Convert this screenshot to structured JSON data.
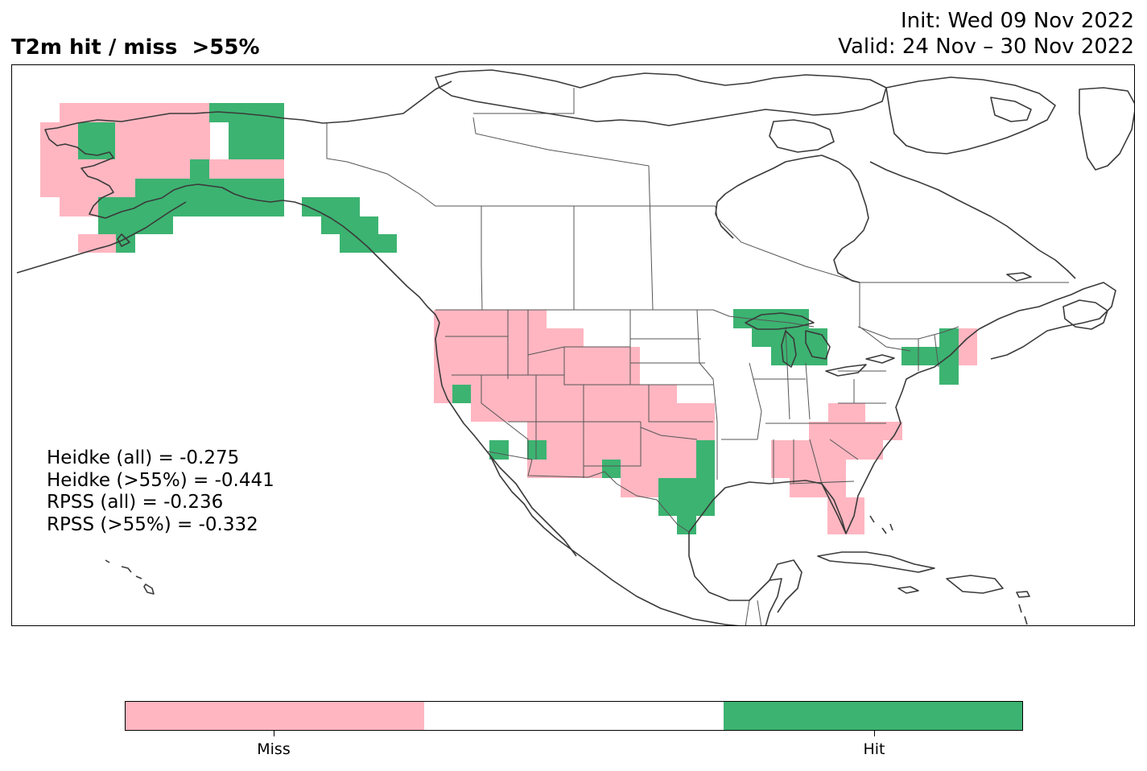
{
  "header": {
    "title": "T2m hit / miss  >55%",
    "init": "Init: Wed 09 Nov 2022",
    "valid": "Valid: 24 Nov – 30 Nov 2022"
  },
  "scores": [
    "Heidke (all) = -0.275",
    "Heidke (>55%) = -0.441",
    "RPSS (all) = -0.236",
    "RPSS (>55%) = -0.332"
  ],
  "legend": {
    "labels": [
      "Miss",
      "",
      "Hit"
    ],
    "colors": [
      "#ffb6c1",
      "#ffffff",
      "#3cb371"
    ]
  },
  "colors": {
    "miss": "#ffb6c1",
    "hit": "#3cb371",
    "coast": "#3a3a3a",
    "frame": "#000000"
  }
}
